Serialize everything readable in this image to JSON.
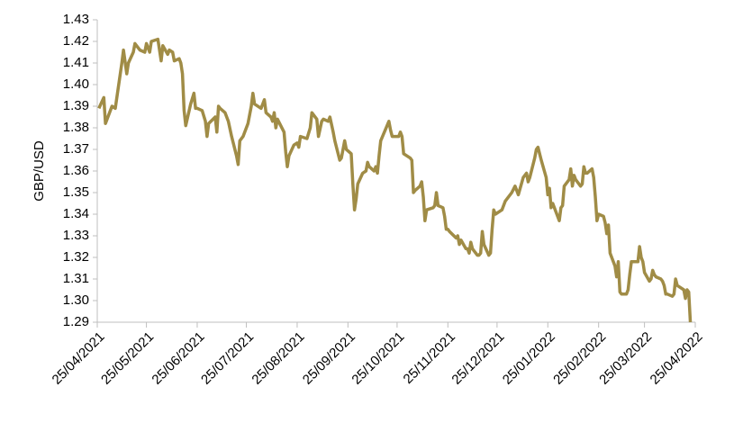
{
  "chart_data": {
    "type": "line",
    "y_label": "GBP/USD",
    "color": "#a08c46",
    "x": [
      "2021-04-26",
      "2021-04-29",
      "2021-04-30",
      "2021-05-04",
      "2021-05-06",
      "2021-05-10",
      "2021-05-11",
      "2021-05-13",
      "2021-05-14",
      "2021-05-17",
      "2021-05-18",
      "2021-05-20",
      "2021-05-21",
      "2021-05-24",
      "2021-05-25",
      "2021-05-27",
      "2021-05-28",
      "2021-06-01",
      "2021-06-02",
      "2021-06-03",
      "2021-06-04",
      "2021-06-07",
      "2021-06-08",
      "2021-06-10",
      "2021-06-11",
      "2021-06-14",
      "2021-06-15",
      "2021-06-16",
      "2021-06-17",
      "2021-06-18",
      "2021-06-21",
      "2021-06-23",
      "2021-06-24",
      "2021-06-25",
      "2021-06-28",
      "2021-06-30",
      "2021-07-01",
      "2021-07-02",
      "2021-07-06",
      "2021-07-07",
      "2021-07-08",
      "2021-07-09",
      "2021-07-12",
      "2021-07-14",
      "2021-07-16",
      "2021-07-19",
      "2021-07-20",
      "2021-07-21",
      "2021-07-23",
      "2021-07-26",
      "2021-07-28",
      "2021-07-29",
      "2021-07-30",
      "2021-08-03",
      "2021-08-05",
      "2021-08-06",
      "2021-08-09",
      "2021-08-10",
      "2021-08-11",
      "2021-08-12",
      "2021-08-13",
      "2021-08-17",
      "2021-08-18",
      "2021-08-19",
      "2021-08-20",
      "2021-08-23",
      "2021-08-25",
      "2021-08-26",
      "2021-08-27",
      "2021-08-31",
      "2021-09-02",
      "2021-09-03",
      "2021-09-06",
      "2021-09-07",
      "2021-09-09",
      "2021-09-10",
      "2021-09-13",
      "2021-09-14",
      "2021-09-16",
      "2021-09-17",
      "2021-09-20",
      "2021-09-21",
      "2021-09-23",
      "2021-09-24",
      "2021-09-27",
      "2021-09-28",
      "2021-09-29",
      "2021-09-30",
      "2021-10-01",
      "2021-10-04",
      "2021-10-06",
      "2021-10-07",
      "2021-10-08",
      "2021-10-11",
      "2021-10-12",
      "2021-10-13",
      "2021-10-14",
      "2021-10-15",
      "2021-10-20",
      "2021-10-21",
      "2021-10-22",
      "2021-10-26",
      "2021-10-27",
      "2021-10-28",
      "2021-10-29",
      "2021-11-02",
      "2021-11-03",
      "2021-11-04",
      "2021-11-05",
      "2021-11-08",
      "2021-11-09",
      "2021-11-10",
      "2021-11-11",
      "2021-11-12",
      "2021-11-16",
      "2021-11-17",
      "2021-11-18",
      "2021-11-19",
      "2021-11-22",
      "2021-11-23",
      "2021-11-24",
      "2021-11-25",
      "2021-11-26",
      "2021-11-30",
      "2021-12-01",
      "2021-12-02",
      "2021-12-03",
      "2021-12-06",
      "2021-12-07",
      "2021-12-08",
      "2021-12-09",
      "2021-12-10",
      "2021-12-13",
      "2021-12-14",
      "2021-12-15",
      "2021-12-16",
      "2021-12-17",
      "2021-12-20",
      "2021-12-21",
      "2021-12-22",
      "2021-12-23",
      "2021-12-24",
      "2021-12-28",
      "2021-12-30",
      "2022-01-03",
      "2022-01-05",
      "2022-01-07",
      "2022-01-10",
      "2022-01-12",
      "2022-01-13",
      "2022-01-14",
      "2022-01-17",
      "2022-01-18",
      "2022-01-19",
      "2022-01-20",
      "2022-01-21",
      "2022-01-24",
      "2022-01-25",
      "2022-01-26",
      "2022-01-27",
      "2022-01-28",
      "2022-02-01",
      "2022-02-02",
      "2022-02-03",
      "2022-02-04",
      "2022-02-07",
      "2022-02-08",
      "2022-02-09",
      "2022-02-10",
      "2022-02-11",
      "2022-02-14",
      "2022-02-15",
      "2022-02-16",
      "2022-02-17",
      "2022-02-18",
      "2022-02-21",
      "2022-02-22",
      "2022-02-23",
      "2022-02-24",
      "2022-02-25",
      "2022-02-28",
      "2022-03-01",
      "2022-03-02",
      "2022-03-03",
      "2022-03-04",
      "2022-03-07",
      "2022-03-08",
      "2022-03-09",
      "2022-03-10",
      "2022-03-11",
      "2022-03-14",
      "2022-03-15",
      "2022-03-16",
      "2022-03-17",
      "2022-03-18",
      "2022-03-21",
      "2022-03-22",
      "2022-03-23",
      "2022-03-24",
      "2022-03-25",
      "2022-03-28",
      "2022-03-29",
      "2022-03-30",
      "2022-03-31",
      "2022-04-01",
      "2022-04-04",
      "2022-04-05",
      "2022-04-06",
      "2022-04-07",
      "2022-04-08",
      "2022-04-11",
      "2022-04-12",
      "2022-04-13",
      "2022-04-14",
      "2022-04-18",
      "2022-04-19",
      "2022-04-20",
      "2022-04-21",
      "2022-04-22"
    ],
    "values": [
      1.389,
      1.394,
      1.382,
      1.39,
      1.389,
      1.41,
      1.416,
      1.405,
      1.41,
      1.415,
      1.419,
      1.417,
      1.416,
      1.415,
      1.419,
      1.415,
      1.42,
      1.421,
      1.416,
      1.411,
      1.418,
      1.414,
      1.416,
      1.415,
      1.411,
      1.412,
      1.41,
      1.405,
      1.388,
      1.381,
      1.391,
      1.396,
      1.389,
      1.389,
      1.388,
      1.383,
      1.376,
      1.382,
      1.385,
      1.378,
      1.39,
      1.389,
      1.387,
      1.383,
      1.376,
      1.367,
      1.363,
      1.374,
      1.376,
      1.382,
      1.39,
      1.396,
      1.391,
      1.389,
      1.393,
      1.387,
      1.385,
      1.383,
      1.387,
      1.38,
      1.384,
      1.378,
      1.369,
      1.362,
      1.367,
      1.372,
      1.373,
      1.371,
      1.376,
      1.375,
      1.38,
      1.387,
      1.384,
      1.376,
      1.383,
      1.384,
      1.383,
      1.385,
      1.378,
      1.374,
      1.365,
      1.366,
      1.374,
      1.37,
      1.368,
      1.354,
      1.342,
      1.347,
      1.354,
      1.359,
      1.36,
      1.364,
      1.362,
      1.36,
      1.362,
      1.359,
      1.367,
      1.374,
      1.383,
      1.379,
      1.376,
      1.376,
      1.378,
      1.376,
      1.368,
      1.366,
      1.365,
      1.35,
      1.351,
      1.353,
      1.355,
      1.348,
      1.337,
      1.342,
      1.343,
      1.344,
      1.35,
      1.344,
      1.343,
      1.339,
      1.333,
      1.333,
      1.332,
      1.329,
      1.33,
      1.326,
      1.328,
      1.324,
      1.324,
      1.322,
      1.327,
      1.324,
      1.321,
      1.321,
      1.322,
      1.332,
      1.326,
      1.321,
      1.322,
      1.333,
      1.342,
      1.34,
      1.342,
      1.346,
      1.35,
      1.353,
      1.349,
      1.357,
      1.359,
      1.355,
      1.357,
      1.366,
      1.37,
      1.371,
      1.368,
      1.365,
      1.357,
      1.349,
      1.352,
      1.343,
      1.345,
      1.337,
      1.343,
      1.344,
      1.353,
      1.356,
      1.361,
      1.353,
      1.358,
      1.356,
      1.353,
      1.354,
      1.362,
      1.359,
      1.359,
      1.361,
      1.357,
      1.348,
      1.337,
      1.34,
      1.339,
      1.336,
      1.331,
      1.335,
      1.322,
      1.316,
      1.311,
      1.318,
      1.304,
      1.303,
      1.303,
      1.305,
      1.312,
      1.318,
      1.318,
      1.318,
      1.325,
      1.32,
      1.318,
      1.313,
      1.309,
      1.31,
      1.314,
      1.312,
      1.311,
      1.31,
      1.309,
      1.307,
      1.303,
      1.303,
      1.302,
      1.303,
      1.31,
      1.307,
      1.305,
      1.301,
      1.305,
      1.304,
      1.29
    ],
    "xlim": [
      "2021-04-25",
      "2022-04-25"
    ],
    "xticks": [
      {
        "value": "2021-04-25",
        "label": "25/04/2021"
      },
      {
        "value": "2021-05-25",
        "label": "25/05/2021"
      },
      {
        "value": "2021-06-25",
        "label": "25/06/2021"
      },
      {
        "value": "2021-07-25",
        "label": "25/07/2021"
      },
      {
        "value": "2021-08-25",
        "label": "25/08/2021"
      },
      {
        "value": "2021-09-25",
        "label": "25/09/2021"
      },
      {
        "value": "2021-10-25",
        "label": "25/10/2021"
      },
      {
        "value": "2021-11-25",
        "label": "25/11/2021"
      },
      {
        "value": "2021-12-25",
        "label": "25/12/2021"
      },
      {
        "value": "2022-01-25",
        "label": "25/01/2022"
      },
      {
        "value": "2022-02-25",
        "label": "25/02/2022"
      },
      {
        "value": "2022-03-25",
        "label": "25/03/2022"
      },
      {
        "value": "2022-04-25",
        "label": "25/04/2022"
      }
    ],
    "ylim": [
      1.29,
      1.43
    ],
    "yticks": [
      1.29,
      {
        "value": 1.3,
        "label": "1.30"
      },
      1.31,
      1.32,
      1.33,
      1.34,
      1.35,
      1.36,
      1.37,
      1.38,
      1.39,
      {
        "value": 1.4,
        "label": "1.40"
      },
      1.41,
      1.42,
      1.43
    ]
  }
}
